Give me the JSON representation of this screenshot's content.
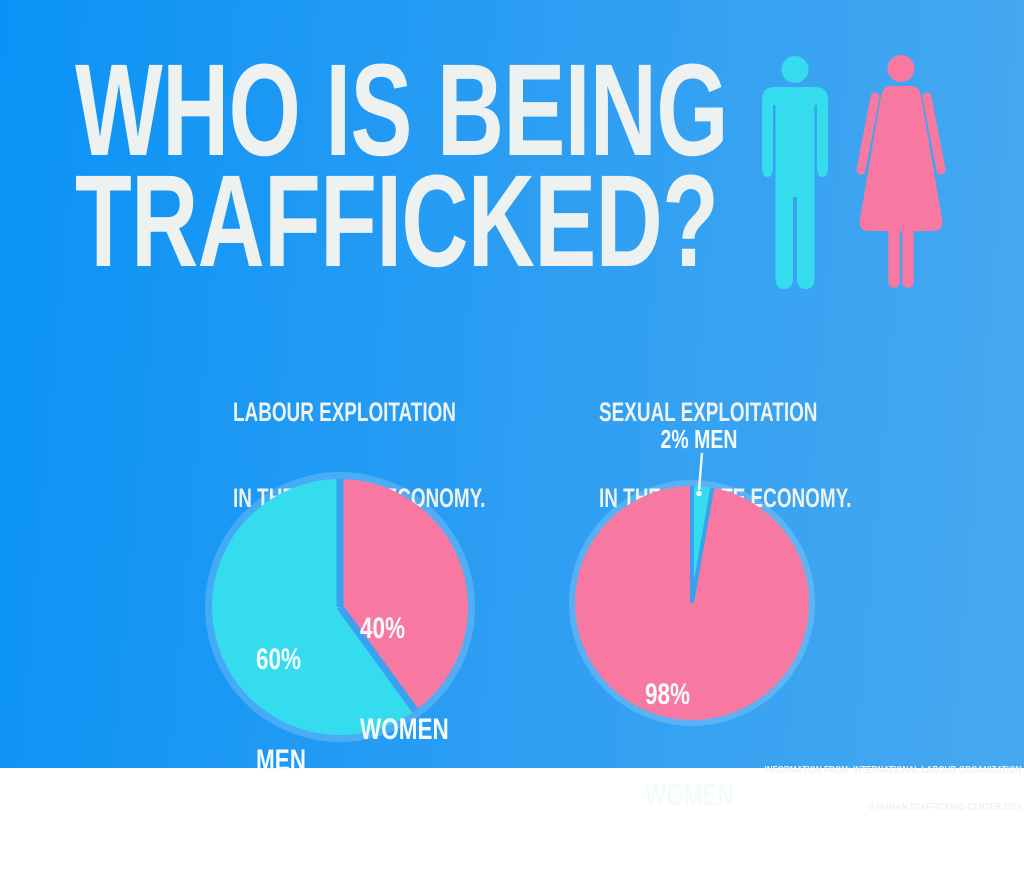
{
  "title": {
    "line1": "WHO IS BEING",
    "line2": "TRAFFICKED?"
  },
  "icons": {
    "male": "male-figure",
    "female": "female-figure"
  },
  "headings": {
    "labour": {
      "line1": "LABOUR EXPLOITATION",
      "line2": "IN THE PRIVATE ECONOMY."
    },
    "sexual": {
      "line1": "SEXUAL EXPLOITATION",
      "line2": "IN THE PRIVATE ECONOMY."
    }
  },
  "labels": {
    "labour_men": {
      "pct": "60%",
      "word": "MEN"
    },
    "labour_women": {
      "pct": "40%",
      "word": "WOMEN"
    },
    "sexual_men": "2% MEN",
    "sexual_women": {
      "pct": "98%",
      "word": "WOMEN"
    }
  },
  "footer": {
    "line1": "INFORMATION FROM: INTERNATIONAL LABOUR ORGANIZATION",
    "line2": "© HUMAN TRAFFICKING CENTER 2014"
  },
  "colors": {
    "bg_left": "#0a93f6",
    "bg_mid": "#2d9ef3",
    "bg_right": "#47a9f0",
    "text": "#edf2f1",
    "cyan": "#35dcee",
    "pink": "#f779a1",
    "ring": "rgba(255,255,255,0.18)",
    "gap": "#39a1f1",
    "leader": "#eef5f8"
  },
  "chart_data": [
    {
      "type": "pie",
      "id": "labour",
      "title": "LABOUR EXPLOITATION IN THE PRIVATE ECONOMY.",
      "slices": [
        {
          "label": "WOMEN",
          "value": 40,
          "unit": "%",
          "color": "#f779a1",
          "start_deg": 0,
          "end_deg": 144
        },
        {
          "label": "MEN",
          "value": 60,
          "unit": "%",
          "color": "#35dcee",
          "start_deg": 144,
          "end_deg": 360
        }
      ],
      "layout": {
        "radius": 128,
        "gap_width": 7,
        "ring_radius": 135,
        "labels_on_slices": true,
        "legend": "none"
      }
    },
    {
      "type": "pie",
      "id": "sexual",
      "title": "SEXUAL EXPLOITATION IN THE PRIVATE ECONOMY.",
      "slices": [
        {
          "label": "MEN",
          "value": 2,
          "unit": "%",
          "color": "#35dcee",
          "start_deg": 0,
          "end_deg": 10
        },
        {
          "label": "WOMEN",
          "value": 98,
          "unit": "%",
          "color": "#f779a1",
          "start_deg": 10,
          "end_deg": 360
        }
      ],
      "layout": {
        "radius": 117,
        "gap_width": 4,
        "ring_radius": 123,
        "labels_on_slices": true,
        "legend": "none"
      }
    }
  ]
}
